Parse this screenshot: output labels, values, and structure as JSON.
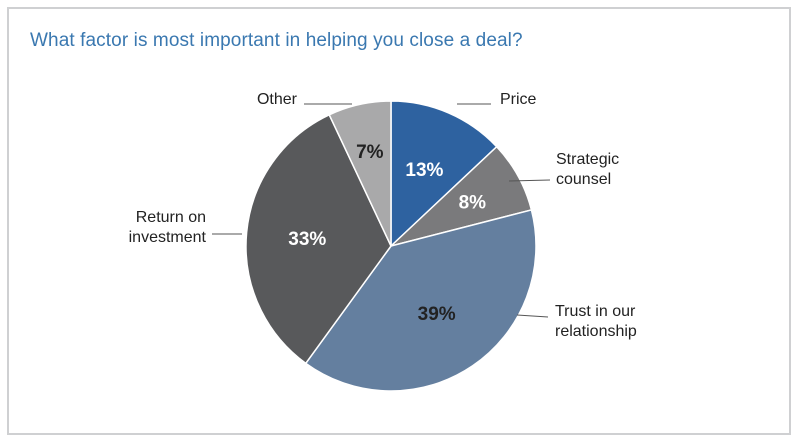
{
  "chart_data": {
    "type": "pie",
    "title": "What factor is most important in helping you close a deal?",
    "title_color": "#3a78b0",
    "slices": [
      {
        "label": "Price",
        "value": 13,
        "value_label": "13%",
        "color": "#2e62a0",
        "text_color": "#ffffff"
      },
      {
        "label": "Strategic counsel",
        "value": 8,
        "value_label": "8%",
        "color": "#7a7a7c",
        "text_color": "#ffffff"
      },
      {
        "label": "Trust in our relationship",
        "value": 39,
        "value_label": "39%",
        "color": "#647f9f",
        "text_color": "#222222"
      },
      {
        "label": "Return on investment",
        "value": 33,
        "value_label": "33%",
        "color": "#58595b",
        "text_color": "#ffffff"
      },
      {
        "label": "Other",
        "value": 7,
        "value_label": "7%",
        "color": "#a9a9aa",
        "text_color": "#222222"
      }
    ]
  }
}
